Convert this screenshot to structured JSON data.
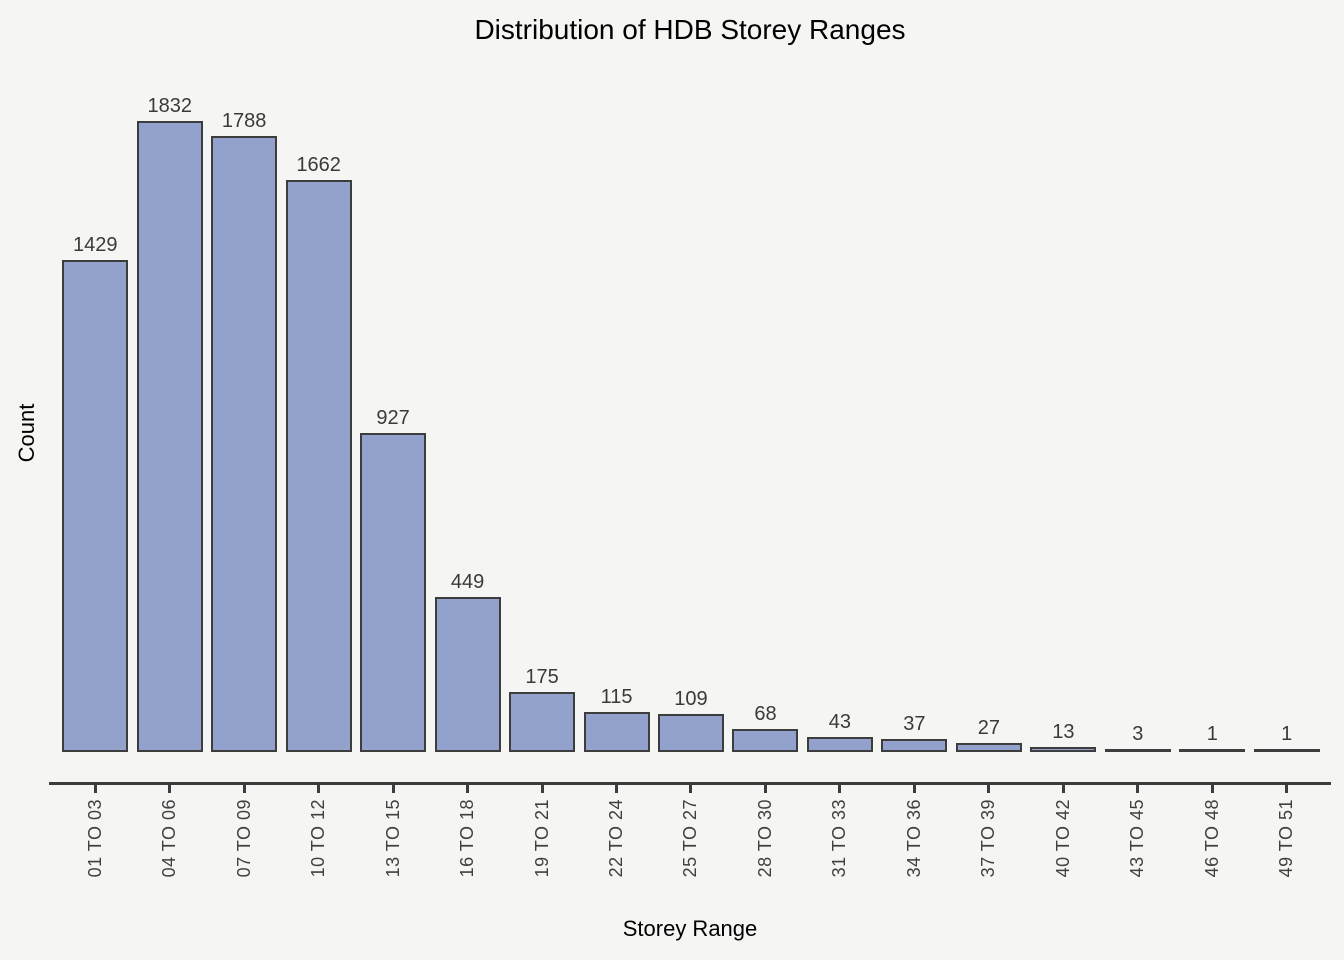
{
  "chart_data": {
    "type": "bar",
    "title": "Distribution of HDB Storey Ranges",
    "xlabel": "Storey Range",
    "ylabel": "Count",
    "categories": [
      "01 TO 03",
      "04 TO 06",
      "07 TO 09",
      "10 TO 12",
      "13 TO 15",
      "16 TO 18",
      "19 TO 21",
      "22 TO 24",
      "25 TO 27",
      "28 TO 30",
      "31 TO 33",
      "34 TO 36",
      "37 TO 39",
      "40 TO 42",
      "43 TO 45",
      "46 TO 48",
      "49 TO 51"
    ],
    "values": [
      1429,
      1832,
      1788,
      1662,
      927,
      449,
      175,
      115,
      109,
      68,
      43,
      37,
      27,
      13,
      3,
      1,
      1
    ],
    "ylim": [
      0,
      1832
    ],
    "grid": false,
    "legend": "none",
    "bar_color": "#92a2cc",
    "bar_edge_color": "#3d3d3d",
    "value_label_color": "#3a3a3a",
    "tick_label_color": "#404040",
    "axis_color": "#3c3c3c",
    "background_color": "#f5f5f3"
  }
}
